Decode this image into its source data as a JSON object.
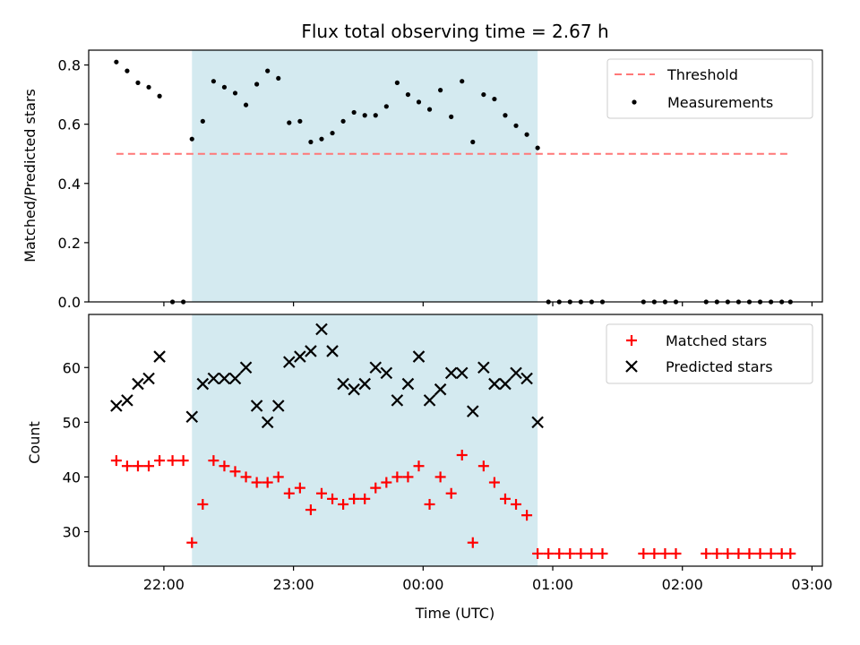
{
  "chart_data": {
    "type": "scatter",
    "title": "Flux total observing time = 2.67 h",
    "xlabel": "Time (UTC)",
    "xlim_hours": [
      21.42,
      27.08
    ],
    "x_tick_labels": [
      "22:00",
      "23:00",
      "00:00",
      "01:00",
      "02:00",
      "03:00"
    ],
    "highlight_span": {
      "start": "22:13",
      "end": "00:53",
      "color": "#d4eaf0"
    },
    "top_panel": {
      "ylabel": "Matched/Predicted stars",
      "ylim": [
        0,
        0.85
      ],
      "y_ticks": [
        "0.0",
        "0.2",
        "0.4",
        "0.6",
        "0.8"
      ],
      "threshold": {
        "name": "Threshold",
        "value": 0.5,
        "x_start": "21:38",
        "x_end": "02:50",
        "color": "#ff7777"
      },
      "measurements_name": "Measurements",
      "legend_position": "top-right"
    },
    "bottom_panel": {
      "ylabel": "Count",
      "ylim": [
        23.7,
        69.7
      ],
      "y_ticks": [
        "30",
        "40",
        "50",
        "60"
      ],
      "matched_name": "Matched stars",
      "predicted_name": "Predicted stars",
      "matched_color": "#ff0000",
      "predicted_color": "#000000",
      "legend_position": "top-right"
    },
    "series": {
      "time": [
        "21:38",
        "21:43",
        "21:48",
        "21:53",
        "21:58",
        "22:04",
        "22:09",
        "22:13",
        "22:18",
        "22:23",
        "22:28",
        "22:33",
        "22:38",
        "22:43",
        "22:48",
        "22:53",
        "22:58",
        "23:03",
        "23:08",
        "23:13",
        "23:18",
        "23:23",
        "23:28",
        "23:33",
        "23:38",
        "23:43",
        "23:48",
        "23:53",
        "23:58",
        "00:03",
        "00:08",
        "00:13",
        "00:18",
        "00:23",
        "00:28",
        "00:33",
        "00:38",
        "00:43",
        "00:48",
        "00:53",
        "00:58",
        "01:03",
        "01:08",
        "01:13",
        "01:18",
        "01:23",
        "01:42",
        "01:47",
        "01:52",
        "01:57",
        "02:11",
        "02:16",
        "02:21",
        "02:26",
        "02:31",
        "02:36",
        "02:41",
        "02:46",
        "02:50"
      ],
      "matched": [
        43,
        42,
        42,
        42,
        43,
        43,
        43,
        28,
        35,
        43,
        42,
        41,
        40,
        39,
        39,
        40,
        37,
        38,
        34,
        37,
        36,
        35,
        36,
        36,
        38,
        39,
        40,
        40,
        42,
        35,
        40,
        37,
        44,
        28,
        42,
        39,
        36,
        35,
        33,
        26,
        26,
        26,
        26,
        26,
        26,
        26,
        26,
        26,
        26,
        26,
        26,
        26,
        26,
        26,
        26,
        26,
        26,
        26,
        26
      ],
      "predicted": [
        53,
        54,
        57,
        58,
        62,
        null,
        null,
        51,
        57,
        58,
        58,
        58,
        60,
        53,
        50,
        53,
        61,
        62,
        63,
        67,
        63,
        57,
        56,
        57,
        60,
        59,
        54,
        57,
        62,
        54,
        56,
        59,
        59,
        52,
        60,
        57,
        57,
        59,
        58,
        50,
        null,
        null,
        null,
        null,
        null,
        null,
        null,
        null,
        null,
        null,
        null,
        null,
        null,
        null,
        null,
        null,
        null,
        null,
        null
      ],
      "ratio": [
        0.81,
        0.78,
        0.74,
        0.725,
        0.695,
        0,
        0,
        0.55,
        0.61,
        0.745,
        0.725,
        0.705,
        0.665,
        0.735,
        0.78,
        0.755,
        0.605,
        0.61,
        0.54,
        0.55,
        0.57,
        0.61,
        0.64,
        0.63,
        0.63,
        0.66,
        0.74,
        0.7,
        0.675,
        0.65,
        0.715,
        0.625,
        0.745,
        0.54,
        0.7,
        0.685,
        0.63,
        0.595,
        0.565,
        0.52,
        0,
        0,
        0,
        0,
        0,
        0,
        0,
        0,
        0,
        0,
        0,
        0,
        0,
        0,
        0,
        0,
        0,
        0,
        0
      ]
    }
  }
}
